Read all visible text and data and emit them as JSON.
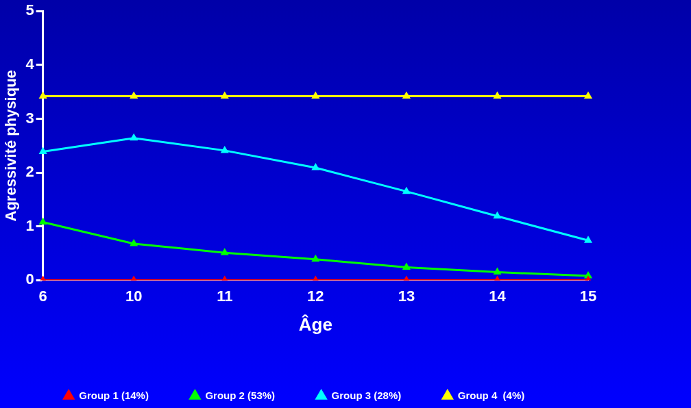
{
  "chart_data": {
    "type": "line",
    "xlabel": "Âge",
    "ylabel": "Agressivité physique",
    "categories": [
      "6",
      "10",
      "11",
      "12",
      "13",
      "14",
      "15"
    ],
    "ylim": [
      0,
      5
    ],
    "yticks": [
      0,
      1,
      2,
      3,
      4,
      5
    ],
    "grid": false,
    "legend": "bottom",
    "marker": "triangle",
    "line_style": "solid",
    "series": [
      {
        "name": "Group 1 (14%)",
        "color": "#ff0000",
        "values": [
          0,
          0,
          0,
          0,
          0,
          0,
          0
        ]
      },
      {
        "name": "Group 2 (53%)",
        "color": "#00ff00",
        "values": [
          1.08,
          0.68,
          0.51,
          0.39,
          0.24,
          0.15,
          0.08
        ]
      },
      {
        "name": "Group 3 (28%)",
        "color": "#00ffff",
        "values": [
          2.39,
          2.64,
          2.41,
          2.09,
          1.65,
          1.19,
          0.74
        ]
      },
      {
        "name": "Group 4  (4%)",
        "color": "#ffff00",
        "values": [
          3.42,
          3.42,
          3.42,
          3.42,
          3.42,
          3.42,
          3.42
        ]
      }
    ]
  }
}
